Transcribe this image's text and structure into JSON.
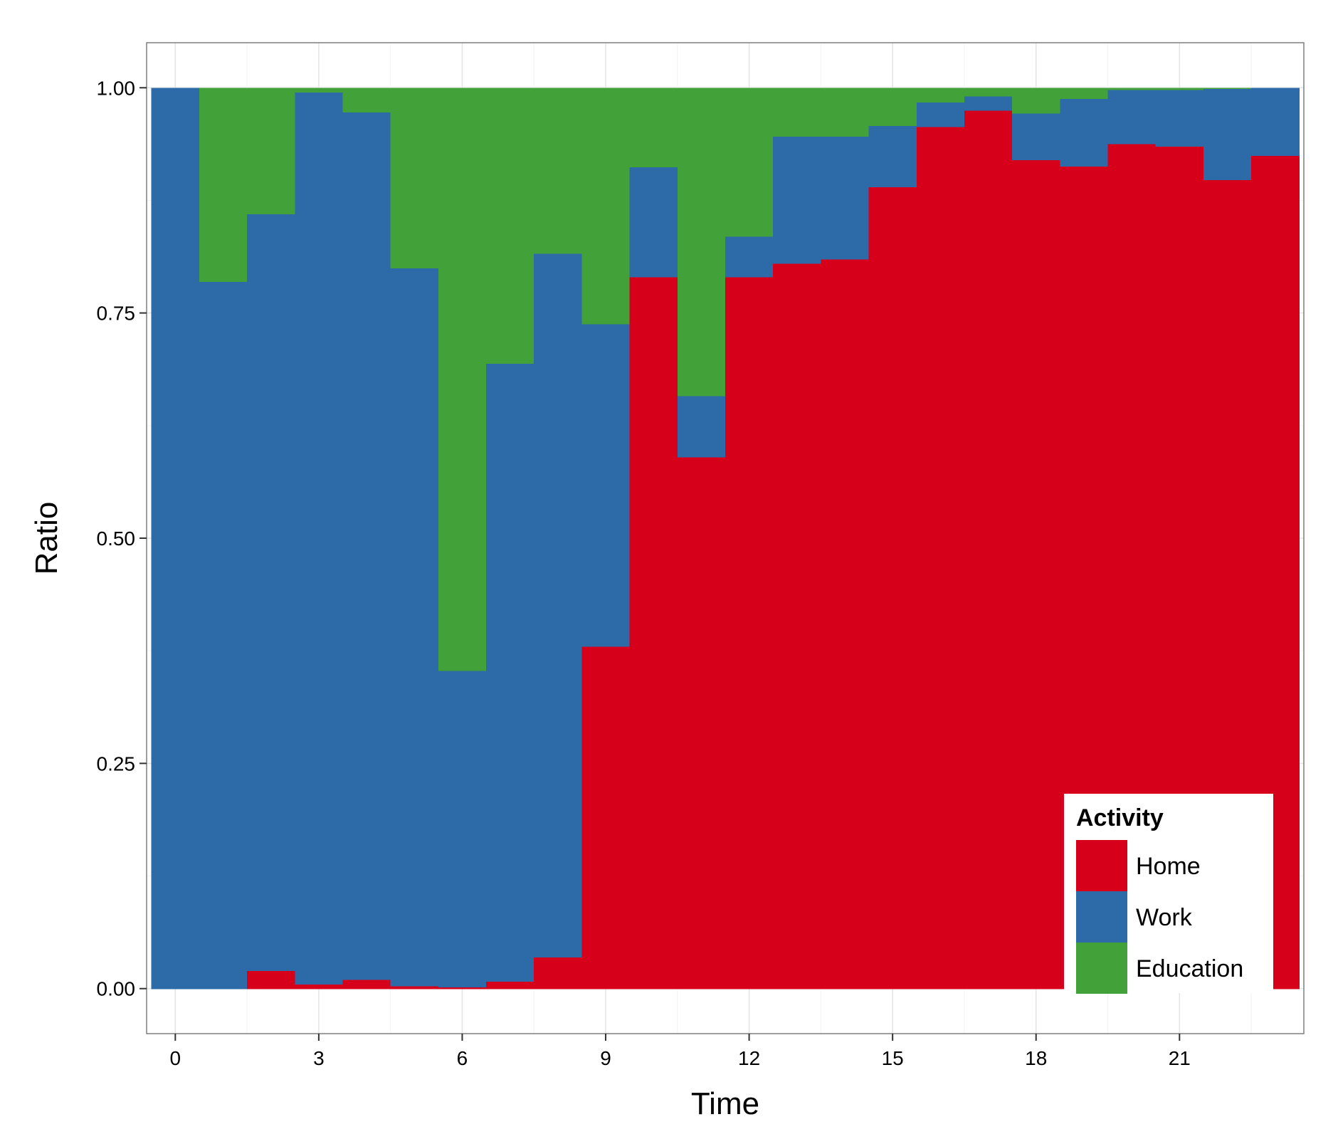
{
  "chart_data": {
    "type": "bar",
    "stacked": true,
    "normalized": true,
    "xlabel": "Time",
    "ylabel": "Ratio",
    "x": [
      0,
      1,
      2,
      3,
      4,
      5,
      6,
      7,
      8,
      9,
      10,
      11,
      12,
      13,
      14,
      15,
      16,
      17,
      18,
      19,
      20,
      21,
      22,
      23
    ],
    "x_ticks": [
      0,
      3,
      6,
      9,
      12,
      15,
      18,
      21
    ],
    "x_tick_labels": [
      "0",
      "3",
      "6",
      "9",
      "12",
      "15",
      "18",
      "21"
    ],
    "y_ticks": [
      0,
      0.25,
      0.5,
      0.75,
      1
    ],
    "y_tick_labels": [
      "0.00",
      "0.25",
      "0.50",
      "0.75",
      "1.00"
    ],
    "xlim": [
      -0.6,
      23.6
    ],
    "ylim": [
      -0.05,
      1.05
    ],
    "series": [
      {
        "name": "Home",
        "color": "#D7001A",
        "values": [
          0.0,
          0.0,
          0.02,
          0.005,
          0.01,
          0.003,
          0.002,
          0.008,
          0.035,
          0.38,
          0.79,
          0.59,
          0.79,
          0.805,
          0.81,
          0.89,
          0.957,
          0.975,
          0.92,
          0.913,
          0.938,
          0.935,
          0.898,
          0.925
        ]
      },
      {
        "name": "Work",
        "color": "#2D6AA8",
        "values": [
          1.0,
          0.785,
          0.84,
          0.99,
          0.963,
          0.797,
          0.351,
          0.686,
          0.781,
          0.358,
          0.122,
          0.068,
          0.045,
          0.141,
          0.136,
          0.068,
          0.027,
          0.016,
          0.052,
          0.075,
          0.06,
          0.063,
          0.101,
          0.075
        ]
      },
      {
        "name": "Education",
        "color": "#43A13A",
        "values": [
          0.0,
          0.215,
          0.14,
          0.005,
          0.027,
          0.2,
          0.647,
          0.306,
          0.184,
          0.262,
          0.088,
          0.342,
          0.165,
          0.054,
          0.054,
          0.042,
          0.016,
          0.009,
          0.028,
          0.012,
          0.002,
          0.002,
          0.001,
          0.0
        ]
      }
    ],
    "grid": true,
    "legend": {
      "title": "Activity",
      "placement": "bottom-right",
      "items": [
        "Home",
        "Work",
        "Education"
      ]
    },
    "colors": {
      "panel_background": "#FFFFFF",
      "grid": "#E5E5E5",
      "border": "#7F7F7F"
    }
  }
}
